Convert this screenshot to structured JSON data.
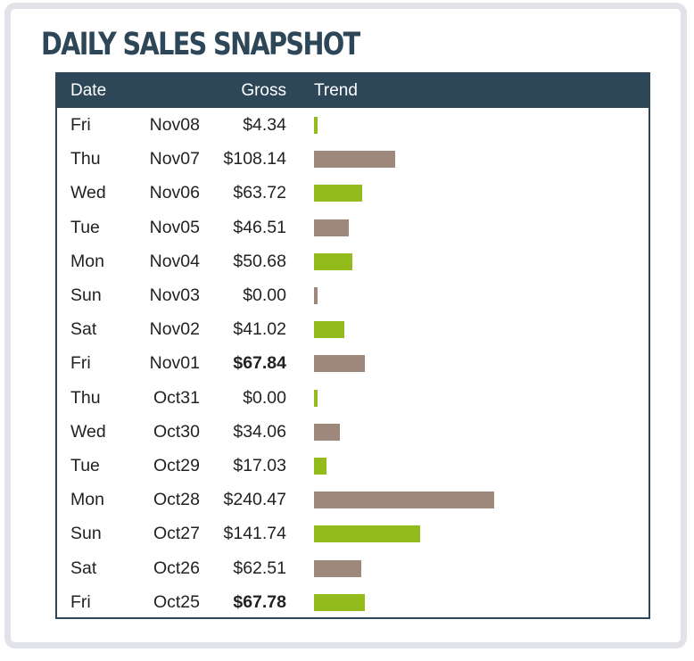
{
  "title": "DAILY SALES SNAPSHOT",
  "header": {
    "date": "Date",
    "gross": "Gross",
    "trend": "Trend"
  },
  "colors": {
    "header_bg": "#2d4759",
    "bar_green": "#93bb1c",
    "bar_brown": "#9e887c"
  },
  "chart_data": {
    "type": "bar",
    "title": "DAILY SALES SNAPSHOT",
    "xlabel": "",
    "ylabel": "Gross",
    "rows": [
      {
        "day": "Fri",
        "date": "Nov08",
        "gross_label": "$4.34",
        "value": 4.34,
        "bold": false,
        "color": "green"
      },
      {
        "day": "Thu",
        "date": "Nov07",
        "gross_label": "$108.14",
        "value": 108.14,
        "bold": false,
        "color": "brown"
      },
      {
        "day": "Wed",
        "date": "Nov06",
        "gross_label": "$63.72",
        "value": 63.72,
        "bold": false,
        "color": "green"
      },
      {
        "day": "Tue",
        "date": "Nov05",
        "gross_label": "$46.51",
        "value": 46.51,
        "bold": false,
        "color": "brown"
      },
      {
        "day": "Mon",
        "date": "Nov04",
        "gross_label": "$50.68",
        "value": 50.68,
        "bold": false,
        "color": "green"
      },
      {
        "day": "Sun",
        "date": "Nov03",
        "gross_label": "$0.00",
        "value": 0.0,
        "bold": false,
        "color": "brown"
      },
      {
        "day": "Sat",
        "date": "Nov02",
        "gross_label": "$41.02",
        "value": 41.02,
        "bold": false,
        "color": "green"
      },
      {
        "day": "Fri",
        "date": "Nov01",
        "gross_label": "$67.84",
        "value": 67.84,
        "bold": true,
        "color": "brown"
      },
      {
        "day": "Thu",
        "date": "Oct31",
        "gross_label": "$0.00",
        "value": 0.0,
        "bold": false,
        "color": "green"
      },
      {
        "day": "Wed",
        "date": "Oct30",
        "gross_label": "$34.06",
        "value": 34.06,
        "bold": false,
        "color": "brown"
      },
      {
        "day": "Tue",
        "date": "Oct29",
        "gross_label": "$17.03",
        "value": 17.03,
        "bold": false,
        "color": "green"
      },
      {
        "day": "Mon",
        "date": "Oct28",
        "gross_label": "$240.47",
        "value": 240.47,
        "bold": false,
        "color": "brown"
      },
      {
        "day": "Sun",
        "date": "Oct27",
        "gross_label": "$141.74",
        "value": 141.74,
        "bold": false,
        "color": "green"
      },
      {
        "day": "Sat",
        "date": "Oct26",
        "gross_label": "$62.51",
        "value": 62.51,
        "bold": false,
        "color": "brown"
      },
      {
        "day": "Fri",
        "date": "Oct25",
        "gross_label": "$67.78",
        "value": 67.78,
        "bold": true,
        "color": "green"
      }
    ],
    "ylim": [
      0,
      240.47
    ]
  }
}
